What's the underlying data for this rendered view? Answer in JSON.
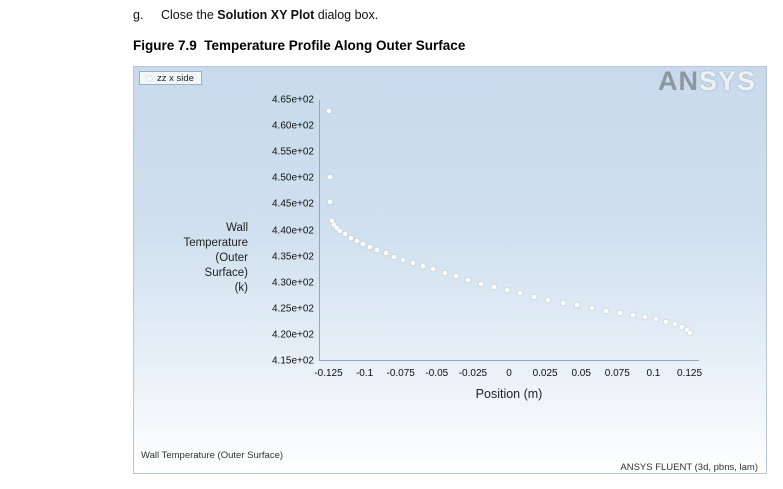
{
  "document": {
    "step_letter": "g.",
    "step_text_prefix": "Close the ",
    "step_text_bold": "Solution XY Plot",
    "step_text_suffix": " dialog box.",
    "figure_caption": "Figure 7.9  Temperature Profile Along Outer Surface"
  },
  "chart": {
    "logo_an": "AN",
    "logo_sys": "SYS",
    "solver_info": "ANSYS FLUENT (3d, pbns, lam)"
  },
  "chart_data": {
    "type": "scatter",
    "title": "Wall Temperature (Outer Surface)",
    "xlabel": "Position (m)",
    "ylabel": "Wall Temperature (Outer Surface) (k)",
    "ylabel_lines": [
      "Wall",
      "Temperature",
      "(Outer",
      "Surface)",
      "(k)"
    ],
    "xlim": [
      -0.125,
      0.125
    ],
    "ylim": [
      415,
      465
    ],
    "grid": false,
    "legend_position": "top-left",
    "x_ticks": [
      "-0.125",
      "-0.1",
      "-0.075",
      "-0.05",
      "-0.025",
      "0",
      "0.025",
      "0.05",
      "0.075",
      "0.1",
      "0.125"
    ],
    "y_ticks": [
      "4.65e+02",
      "4.60e+02",
      "4.55e+02",
      "4.50e+02",
      "4.45e+02",
      "4.40e+02",
      "4.35e+02",
      "4.30e+02",
      "4.25e+02",
      "4.20e+02",
      "4.15e+02"
    ],
    "series": [
      {
        "name": "zz x side",
        "marker": "white-circle",
        "points": [
          [
            -0.125,
            462.8
          ],
          [
            -0.1248,
            450.2
          ],
          [
            -0.1243,
            445.4
          ],
          [
            -0.1235,
            441.8
          ],
          [
            -0.122,
            440.9
          ],
          [
            -0.12,
            440.3
          ],
          [
            -0.1175,
            439.8
          ],
          [
            -0.114,
            439.2
          ],
          [
            -0.11,
            438.5
          ],
          [
            -0.106,
            437.9
          ],
          [
            -0.102,
            437.3
          ],
          [
            -0.097,
            436.7
          ],
          [
            -0.092,
            436.1
          ],
          [
            -0.086,
            435.5
          ],
          [
            -0.08,
            434.9
          ],
          [
            -0.074,
            434.3
          ],
          [
            -0.067,
            433.7
          ],
          [
            -0.06,
            433.1
          ],
          [
            -0.053,
            432.5
          ],
          [
            -0.045,
            431.8
          ],
          [
            -0.037,
            431.1
          ],
          [
            -0.029,
            430.4
          ],
          [
            -0.02,
            429.7
          ],
          [
            -0.011,
            429.0
          ],
          [
            -0.002,
            428.4
          ],
          [
            0.007,
            427.8
          ],
          [
            0.017,
            427.2
          ],
          [
            0.027,
            426.6
          ],
          [
            0.037,
            426.0
          ],
          [
            0.047,
            425.5
          ],
          [
            0.057,
            425.0
          ],
          [
            0.067,
            424.5
          ],
          [
            0.077,
            424.0
          ],
          [
            0.086,
            423.6
          ],
          [
            0.094,
            423.2
          ],
          [
            0.102,
            422.8
          ],
          [
            0.109,
            422.4
          ],
          [
            0.115,
            422.0
          ],
          [
            0.12,
            421.4
          ],
          [
            0.1235,
            420.7
          ],
          [
            0.125,
            420.1
          ]
        ]
      }
    ]
  }
}
